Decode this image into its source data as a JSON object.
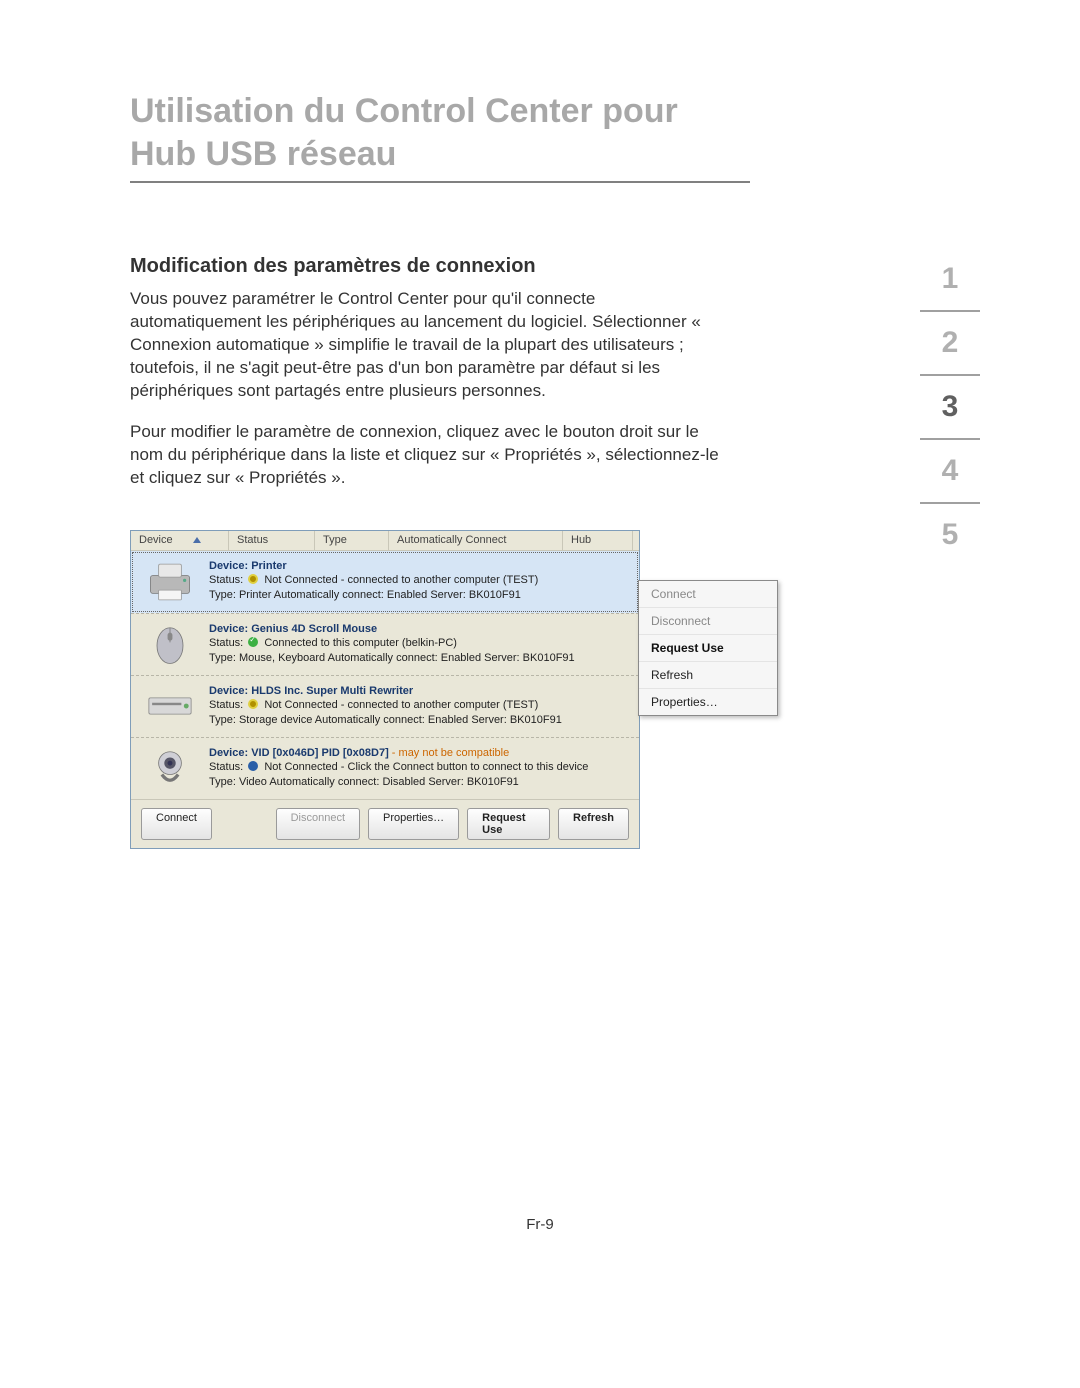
{
  "title": "Utilisation du Control Center pour Hub USB réseau",
  "section_title": "Modification des paramètres de connexion",
  "para1": "Vous pouvez paramétrer le Control Center pour qu'il connecte automatiquement les périphériques au lancement du logiciel. Sélectionner « Connexion automatique » simplifie le travail de la plupart des utilisateurs ; toutefois, il ne s'agit peut-être pas d'un bon paramètre par défaut si les périphériques sont partagés entre plusieurs personnes.",
  "para2": "Pour modifier le paramètre de connexion, cliquez avec le bouton droit sur le nom du périphérique dans la liste et cliquez sur « Propriétés », sélectionnez-le et cliquez sur « Propriétés ».",
  "nav": {
    "items": [
      "1",
      "2",
      "3",
      "4",
      "5"
    ],
    "active_index": 2
  },
  "footer": "Fr-9",
  "panel": {
    "columns": {
      "device": "Device",
      "status": "Status",
      "type": "Type",
      "auto": "Automatically Connect",
      "hub": "Hub"
    },
    "col_widths": {
      "device": 98,
      "status": 86,
      "type": 74,
      "auto": 174,
      "hub": 70
    },
    "rows": [
      {
        "selected": true,
        "icon": "printer",
        "name_label": "Device: Printer",
        "status_icon": "busy",
        "status_text": "Not Connected - connected to another computer (TEST)",
        "type_line": "Type: Printer   Automatically connect: Enabled   Server: BK010F91"
      },
      {
        "selected": false,
        "icon": "mouse",
        "name_label": "Device: Genius 4D Scroll Mouse",
        "status_icon": "ok",
        "status_text": "Connected to this computer (belkin-PC)",
        "type_line": "Type: Mouse, Keyboard   Automatically connect: Enabled   Server: BK010F91"
      },
      {
        "selected": false,
        "icon": "drive",
        "name_label": "Device: HLDS Inc. Super Multi Rewriter",
        "status_icon": "busy",
        "status_text": "Not Connected - connected to another computer (TEST)",
        "type_line": "Type: Storage device   Automatically connect: Enabled   Server: BK010F91"
      },
      {
        "selected": false,
        "icon": "webcam",
        "name_prefix": "Device: VID [0x046D] PID [0x08D7]",
        "name_warn": " - may not be compatible",
        "status_icon": "info",
        "status_text": "Not Connected - Click the Connect button to connect to this device",
        "type_line": "Type: Video   Automatically connect: Disabled   Server: BK010F91"
      }
    ],
    "buttons": {
      "connect": "Connect",
      "disconnect": "Disconnect",
      "properties": "Properties…",
      "request": "Request Use",
      "refresh": "Refresh"
    },
    "context_menu": [
      {
        "label": "Connect",
        "enabled": false,
        "bold": false
      },
      {
        "label": "Disconnect",
        "enabled": false,
        "bold": false
      },
      {
        "label": "Request Use",
        "enabled": true,
        "bold": true
      },
      {
        "label": "Refresh",
        "enabled": true,
        "bold": false
      },
      {
        "label": "Properties…",
        "enabled": true,
        "bold": false
      }
    ]
  },
  "style": {
    "panel_bg": "#e9e7d8",
    "panel_border": "#7f9db9",
    "selection_bg": "#d6e5f5",
    "title_color": "#a8a8a8",
    "text_color": "#333333",
    "link_color": "#1a3a6e",
    "warn_color": "#cc6600"
  }
}
